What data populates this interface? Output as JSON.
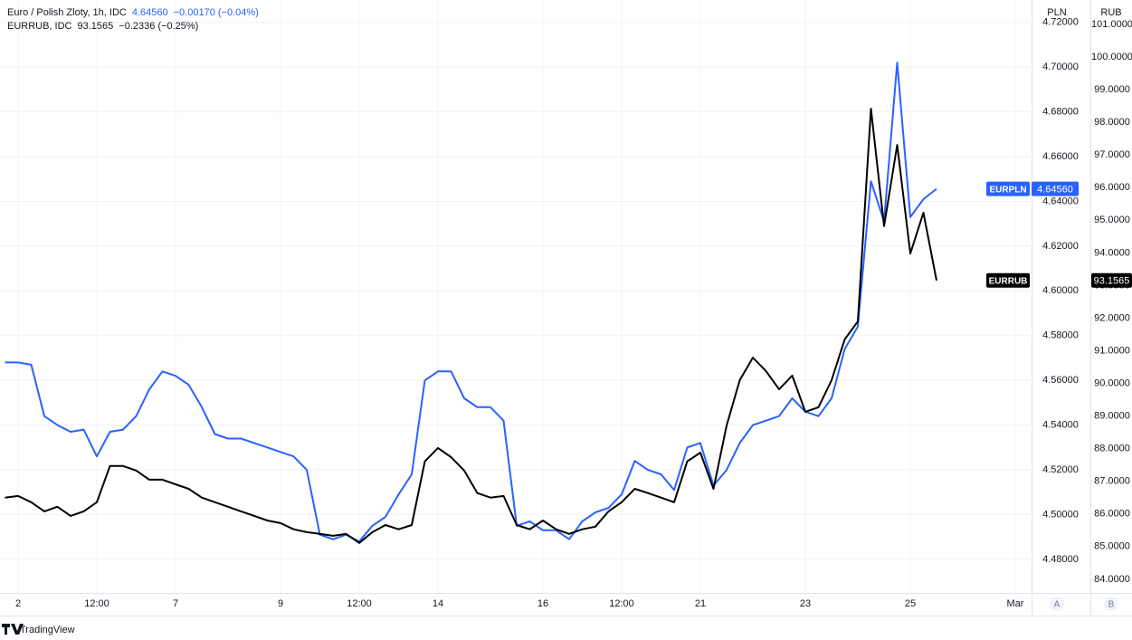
{
  "chart_data": {
    "type": "line",
    "y_label": "PLN",
    "y2_label": "RUB",
    "categories": [
      null,
      "2",
      null,
      null,
      null,
      null,
      null,
      "12:00",
      null,
      null,
      null,
      null,
      null,
      "7",
      null,
      null,
      null,
      null,
      null,
      null,
      null,
      "9",
      null,
      null,
      null,
      null,
      null,
      "12:00",
      null,
      null,
      null,
      null,
      null,
      "14",
      null,
      null,
      null,
      null,
      null,
      null,
      null,
      "16",
      null,
      null,
      null,
      null,
      null,
      "12:00",
      null,
      null,
      null,
      null,
      null,
      "21",
      null,
      null,
      null,
      null,
      null,
      null,
      null,
      "23",
      null,
      null,
      null,
      null,
      null,
      null,
      null,
      "25",
      null,
      null,
      null,
      null,
      null,
      null,
      null,
      "Mar",
      null
    ],
    "series": [
      {
        "name": "EURPLN",
        "header": "Euro / Polish Zloty, 1h, IDC",
        "last_label": "4.64560",
        "change_label": "−0.00170 (−0.04%)",
        "color": "#2962ff",
        "values": [
          4.568,
          4.568,
          4.567,
          4.544,
          4.54,
          4.537,
          4.538,
          4.526,
          4.537,
          4.538,
          4.544,
          4.556,
          4.564,
          4.562,
          4.558,
          4.548,
          4.536,
          4.534,
          4.534,
          4.532,
          4.53,
          4.528,
          4.526,
          4.52,
          4.491,
          4.489,
          4.491,
          4.488,
          4.495,
          4.499,
          4.509,
          4.518,
          4.56,
          4.564,
          4.564,
          4.552,
          4.548,
          4.548,
          4.542,
          4.495,
          4.497,
          4.493,
          4.493,
          4.489,
          4.497,
          4.501,
          4.503,
          4.509,
          4.524,
          4.52,
          4.518,
          4.511,
          4.53,
          4.532,
          4.513,
          4.52,
          4.532,
          4.54,
          4.542,
          4.544,
          4.552,
          4.546,
          4.544,
          4.552,
          4.574,
          4.584,
          4.649,
          4.631,
          4.702,
          4.633,
          4.641,
          4.6456,
          null,
          null,
          null,
          null,
          null,
          null,
          null
        ]
      },
      {
        "name": "EURRUB",
        "header": "EURRUB, IDC",
        "last_label": "93.1565",
        "change_label": "−0.2336 (−0.25%)",
        "color": "#000000",
        "axis": "y2",
        "values": [
          86.5,
          86.55,
          86.36,
          86.08,
          86.22,
          85.94,
          86.08,
          86.36,
          87.47,
          87.47,
          87.33,
          87.05,
          87.05,
          86.91,
          86.77,
          86.5,
          86.36,
          86.22,
          86.08,
          85.94,
          85.8,
          85.72,
          85.53,
          85.44,
          85.39,
          85.33,
          85.39,
          85.11,
          85.44,
          85.66,
          85.53,
          85.66,
          87.61,
          88.02,
          87.74,
          87.33,
          86.64,
          86.5,
          86.55,
          85.66,
          85.53,
          85.8,
          85.53,
          85.39,
          85.53,
          85.61,
          86.08,
          86.36,
          86.77,
          86.64,
          86.5,
          86.36,
          87.61,
          87.88,
          86.77,
          88.71,
          90.1,
          90.79,
          90.38,
          89.82,
          90.24,
          89.13,
          89.27,
          90.1,
          91.35,
          91.9,
          98.42,
          94.82,
          97.31,
          93.98,
          95.23,
          93.1565,
          null,
          null,
          null,
          null,
          null,
          null,
          null
        ]
      }
    ],
    "ylim": [
      4.465,
      4.73
    ],
    "yticks": [
      {
        "value": 4.48,
        "label": "4.48000"
      },
      {
        "value": 4.5,
        "label": "4.50000"
      },
      {
        "value": 4.52,
        "label": "4.52000"
      },
      {
        "value": 4.54,
        "label": "4.54000"
      },
      {
        "value": 4.56,
        "label": "4.56000"
      },
      {
        "value": 4.58,
        "label": "4.58000"
      },
      {
        "value": 4.6,
        "label": "4.60000"
      },
      {
        "value": 4.62,
        "label": "4.62000"
      },
      {
        "value": 4.64,
        "label": "4.64000"
      },
      {
        "value": 4.66,
        "label": "4.66000"
      },
      {
        "value": 4.68,
        "label": "4.68000"
      },
      {
        "value": 4.7,
        "label": "4.70000"
      },
      {
        "value": 4.72,
        "label": "4.72000"
      }
    ],
    "y2lim": [
      83.58,
      101.75
    ],
    "y2ticks": [
      {
        "value": 84,
        "label": "84.0000"
      },
      {
        "value": 85,
        "label": "85.0000"
      },
      {
        "value": 86,
        "label": "86.0000"
      },
      {
        "value": 87,
        "label": "87.0000"
      },
      {
        "value": 88,
        "label": "88.0000"
      },
      {
        "value": 89,
        "label": "89.0000"
      },
      {
        "value": 90,
        "label": "90.0000"
      },
      {
        "value": 91,
        "label": "91.0000"
      },
      {
        "value": 92,
        "label": "92.0000"
      },
      {
        "value": 93,
        "label": "93.0000"
      },
      {
        "value": 94,
        "label": "94.0000"
      },
      {
        "value": 95,
        "label": "95.0000"
      },
      {
        "value": 96,
        "label": "96.0000"
      },
      {
        "value": 97,
        "label": "97.0000"
      },
      {
        "value": 98,
        "label": "98.0000"
      },
      {
        "value": 99,
        "label": "99.0000"
      },
      {
        "value": 100,
        "label": "100.0000"
      },
      {
        "value": 101,
        "label": "101.0000"
      }
    ],
    "grid": true
  },
  "ui": {
    "brand": "TradingView",
    "buttons": [
      "A",
      "B"
    ]
  }
}
